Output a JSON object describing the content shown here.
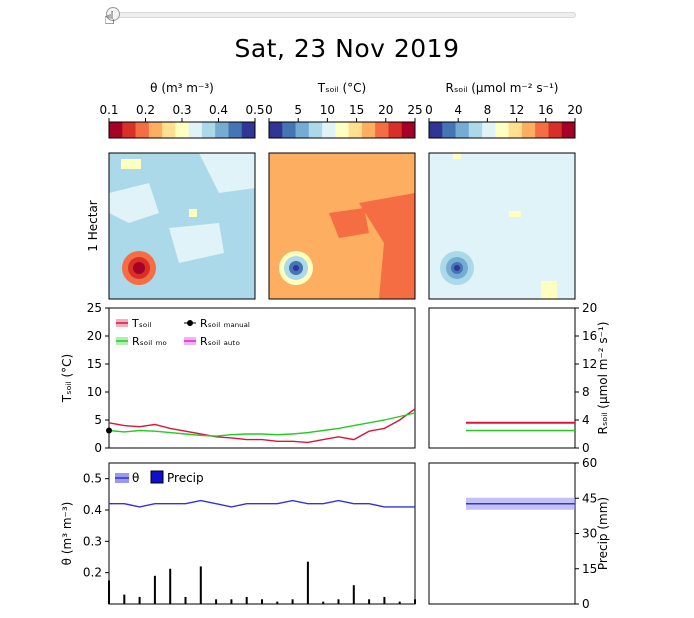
{
  "title": "Sat, 23 Nov 2019",
  "slider": {
    "value_fraction": 0.0
  },
  "colorbars": [
    {
      "label": "θ (m³ m⁻³)",
      "ticks": [
        "0.1",
        "0.2",
        "0.3",
        "0.4",
        "0.5"
      ],
      "colors": [
        "#a50026",
        "#d73027",
        "#f46d43",
        "#fdae61",
        "#fee090",
        "#ffffbf",
        "#e0f3f8",
        "#abd9e9",
        "#74add1",
        "#4575b4",
        "#313695"
      ]
    },
    {
      "label": "Tₛₒᵢₗ (°C)",
      "ticks": [
        "0",
        "5",
        "10",
        "15",
        "20",
        "25"
      ],
      "colors": [
        "#313695",
        "#4575b4",
        "#74add1",
        "#abd9e9",
        "#e0f3f8",
        "#ffffbf",
        "#fee090",
        "#fdae61",
        "#f46d43",
        "#d73027",
        "#a50026"
      ]
    },
    {
      "label": "Rₛₒᵢₗ (μmol m⁻² s⁻¹)",
      "ticks": [
        "0",
        "4",
        "8",
        "12",
        "16",
        "20"
      ],
      "colors": [
        "#313695",
        "#4575b4",
        "#74add1",
        "#abd9e9",
        "#e0f3f8",
        "#ffffbf",
        "#fee090",
        "#fdae61",
        "#f46d43",
        "#d73027",
        "#a50026"
      ]
    }
  ],
  "maps": {
    "row_label": "1 Hectar",
    "panels": [
      {
        "name": "theta",
        "base": "#abd9e9",
        "patch": "#e0f3f8",
        "spot": "#a50026"
      },
      {
        "name": "tsoil",
        "base": "#fdae61",
        "patch": "#f46d43",
        "spot": "#313695"
      },
      {
        "name": "rsoil",
        "base": "#e0f3f8",
        "patch": "#ffffbf",
        "spot": "#313695"
      }
    ]
  },
  "chart_data": [
    {
      "type": "line",
      "ylabel_left": "Tₛₒᵢₗ (°C)",
      "ylabel_right": "Rₛₒᵢₗ (μmol m⁻² s⁻¹)",
      "ylim_left": [
        0,
        25
      ],
      "yticks_left": [
        "0",
        "5",
        "10",
        "15",
        "20",
        "25"
      ],
      "ylim_right": [
        0,
        20
      ],
      "yticks_right": [
        "0",
        "4",
        "8",
        "12",
        "16",
        "20"
      ],
      "legend": [
        {
          "label": "Tₛₒᵢₗ",
          "color": "#dc143c"
        },
        {
          "label": "Rₛₒᵢₗ ₘₒ",
          "color": "#22cc22"
        },
        {
          "label": "Rₛₒᵢₗ ₘₐₙᵤₐₗ",
          "color": "#000000"
        },
        {
          "label": "Rₛₒᵢₗ ₐᵤₜₒ",
          "color": "#dd22dd"
        }
      ],
      "x": [
        0,
        5,
        10,
        15,
        20,
        25,
        30,
        35,
        40,
        45,
        50,
        55,
        60,
        65,
        70,
        75,
        80,
        85,
        90,
        95,
        100
      ],
      "series": [
        {
          "name": "Tₛₒᵢₗ",
          "axis": "left",
          "values": [
            4.5,
            4.0,
            3.8,
            4.2,
            3.5,
            3.0,
            2.5,
            2.0,
            1.8,
            1.5,
            1.5,
            1.2,
            1.2,
            1.0,
            1.5,
            2.0,
            1.5,
            3.0,
            3.5,
            5.0,
            7.0
          ]
        },
        {
          "name": "Rₛₒᵢₗ ₘₒ",
          "axis": "right",
          "values": [
            2.5,
            2.3,
            2.5,
            2.4,
            2.2,
            2.0,
            1.8,
            1.7,
            1.9,
            2.0,
            2.0,
            1.9,
            2.0,
            2.2,
            2.5,
            2.8,
            3.2,
            3.6,
            4.0,
            4.5,
            5.0
          ]
        },
        {
          "name": "Rₛₒᵢₗ ₐᵤₜₒ",
          "axis": "right",
          "values": [
            null,
            null,
            null,
            null,
            null,
            null,
            null,
            null,
            null,
            null,
            null,
            null,
            null,
            null,
            null,
            null,
            null,
            null,
            null,
            null,
            null
          ]
        }
      ],
      "manual_points": [
        {
          "x": 0,
          "y": 2.5
        }
      ]
    },
    {
      "type": "line",
      "ylabel_left": "θ (m³ m⁻³)",
      "ylabel_right": "Precip (mm)",
      "ylim_left": [
        0.1,
        0.55
      ],
      "yticks_left": [
        "0.2",
        "0.3",
        "0.4",
        "0.5"
      ],
      "ylim_right": [
        0,
        60
      ],
      "yticks_right": [
        "0",
        "15",
        "30",
        "45",
        "60"
      ],
      "legend": [
        {
          "label": "θ",
          "color": "#3333dd"
        },
        {
          "label": "Precip",
          "color": "#1010cc"
        }
      ],
      "x": [
        0,
        5,
        10,
        15,
        20,
        25,
        30,
        35,
        40,
        45,
        50,
        55,
        60,
        65,
        70,
        75,
        80,
        85,
        90,
        95,
        100
      ],
      "series": [
        {
          "name": "θ",
          "axis": "left",
          "values": [
            0.42,
            0.42,
            0.41,
            0.42,
            0.42,
            0.42,
            0.43,
            0.42,
            0.41,
            0.42,
            0.42,
            0.42,
            0.43,
            0.42,
            0.42,
            0.43,
            0.42,
            0.42,
            0.41,
            0.41,
            0.41
          ]
        },
        {
          "name": "Precip",
          "axis": "right",
          "values": [
            10,
            4,
            3,
            12,
            15,
            3,
            16,
            2,
            2,
            3,
            2,
            1,
            2,
            18,
            1,
            2,
            8,
            2,
            3,
            1,
            2
          ]
        }
      ]
    }
  ],
  "right_panels": {
    "tsoil_value": 4.5,
    "rsoil_mo_value": 2.5,
    "theta_value": 0.42
  }
}
